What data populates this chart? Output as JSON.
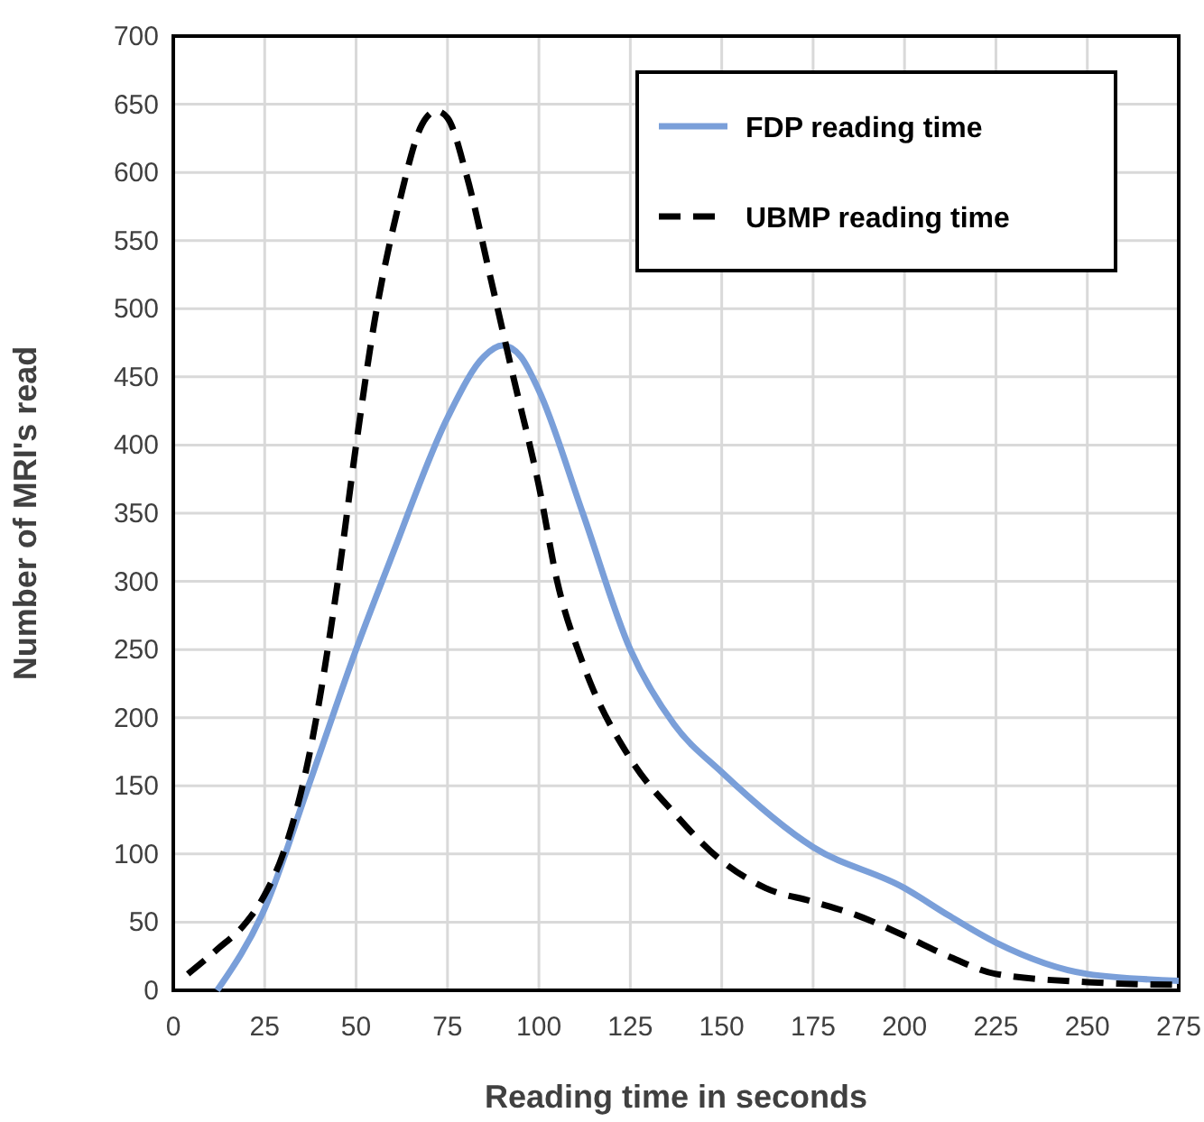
{
  "chart_data": {
    "type": "line",
    "xlabel": "Reading time in seconds",
    "ylabel": "Number of MRI's read",
    "xlim": [
      0,
      275
    ],
    "ylim": [
      0,
      700
    ],
    "xticks": [
      0,
      25,
      50,
      75,
      100,
      125,
      150,
      175,
      200,
      225,
      250,
      275
    ],
    "yticks": [
      0,
      50,
      100,
      150,
      200,
      250,
      300,
      350,
      400,
      450,
      500,
      550,
      600,
      650,
      700
    ],
    "grid": true,
    "legend": "top right",
    "marker": "none",
    "series": [
      {
        "name": "FDP reading time",
        "color": "#7a9fd9",
        "line_style": "solid",
        "x": [
          12,
          25,
          37,
          50,
          60,
          75,
          85,
          90,
          95,
          100,
          112,
          125,
          137,
          150,
          175,
          200,
          212,
          225,
          250,
          275
        ],
        "values": [
          0,
          60,
          150,
          250,
          320,
          420,
          465,
          473,
          465,
          440,
          350,
          250,
          195,
          160,
          105,
          75,
          55,
          35,
          12,
          7
        ]
      },
      {
        "name": "UBMP reading time",
        "color": "#000000",
        "line_style": "dashed",
        "x": [
          4,
          12,
          20,
          25,
          30,
          37,
          45,
          50,
          55,
          62,
          68,
          72,
          75,
          80,
          87,
          93,
          100,
          105,
          112,
          125,
          137,
          150,
          162,
          175,
          187,
          200,
          212,
          225,
          250,
          275
        ],
        "values": [
          12,
          30,
          50,
          70,
          100,
          170,
          300,
          400,
          490,
          580,
          635,
          645,
          640,
          600,
          520,
          450,
          370,
          300,
          240,
          170,
          130,
          95,
          75,
          65,
          55,
          40,
          25,
          12,
          6,
          4
        ]
      }
    ]
  }
}
